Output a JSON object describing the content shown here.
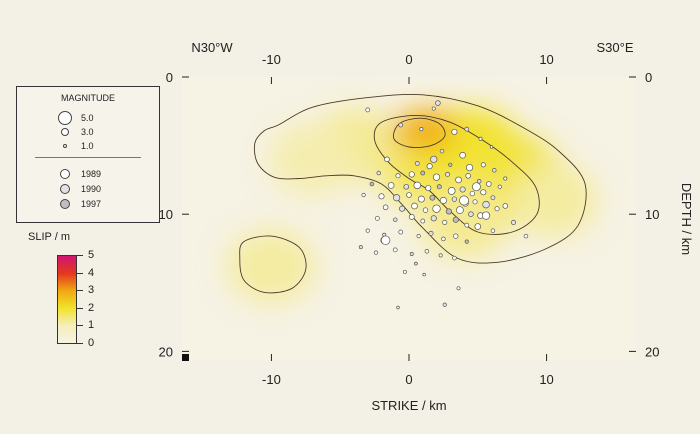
{
  "chart_data": {
    "type": "heatmap",
    "title": "",
    "xlabel": "STRIKE / km",
    "ylabel": "DEPTH / km",
    "corner_left": "N30°W",
    "corner_right": "S30°E",
    "xlim": [
      -16.5,
      16.5
    ],
    "ylim": [
      0,
      20.7
    ],
    "y_inverted": true,
    "x_ticks": [
      -10,
      0,
      10
    ],
    "x_tick_labels": [
      "-10",
      "0",
      "10"
    ],
    "y_ticks": [
      0,
      10,
      20
    ],
    "y_tick_labels": [
      "0",
      "10",
      "20"
    ],
    "colorbar": {
      "title": "SLIP / m",
      "min": 0,
      "max": 5,
      "tick_labels": [
        "5",
        "4",
        "3",
        "2",
        "1",
        "0"
      ],
      "colors": [
        "#f7f3df",
        "#f5eebd",
        "#f2e22c",
        "#f0a812",
        "#e5371e",
        "#cf1570"
      ]
    },
    "slip_patches": [
      {
        "x": 1.5,
        "y": 6.2,
        "slip": 1.7
      },
      {
        "x": 4.5,
        "y": 5.5,
        "slip": 2.0
      },
      {
        "x": 7.5,
        "y": 7.5,
        "slip": 1.9
      },
      {
        "x": -4.0,
        "y": 5.0,
        "slip": 1.3
      },
      {
        "x": -7.0,
        "y": 6.0,
        "slip": 1.1
      },
      {
        "x": 10.5,
        "y": 9.0,
        "slip": 1.2
      },
      {
        "x": 0.5,
        "y": 4.0,
        "slip": 2.6
      },
      {
        "x": 1.5,
        "y": 3.8,
        "slip": 2.9
      },
      {
        "x": -10.0,
        "y": 13.8,
        "slip": 1.2
      },
      {
        "x": 4.0,
        "y": 10.5,
        "slip": 1.3
      }
    ],
    "contours": [
      {
        "level": 1,
        "points": [
          [
            -9.5,
            3.5
          ],
          [
            -7,
            2.2
          ],
          [
            -3,
            1.5
          ],
          [
            1,
            1.3
          ],
          [
            5,
            2.1
          ],
          [
            8.5,
            3.8
          ],
          [
            11,
            5.5
          ],
          [
            12.8,
            7.8
          ],
          [
            12.3,
            10.8
          ],
          [
            10,
            12.5
          ],
          [
            6.5,
            13.5
          ],
          [
            3.5,
            13.2
          ],
          [
            1,
            11
          ],
          [
            -0.5,
            9.3
          ],
          [
            -2,
            7.8
          ],
          [
            -4,
            7.2
          ],
          [
            -6,
            7.2
          ],
          [
            -8,
            7.4
          ],
          [
            -9.8,
            7.3
          ],
          [
            -11,
            6.3
          ],
          [
            -11.2,
            4.8
          ],
          [
            -10.5,
            3.9
          ]
        ]
      },
      {
        "level": 1,
        "points": [
          [
            -12,
            12
          ],
          [
            -10,
            11.6
          ],
          [
            -8,
            12.4
          ],
          [
            -7.5,
            14
          ],
          [
            -8.5,
            15.4
          ],
          [
            -10.5,
            15.7
          ],
          [
            -12,
            14.8
          ],
          [
            -12.3,
            13.2
          ]
        ]
      },
      {
        "level": 2,
        "points": [
          [
            -2,
            3.3
          ],
          [
            0.5,
            2.8
          ],
          [
            3,
            3.3
          ],
          [
            5.5,
            4.7
          ],
          [
            7.5,
            6.2
          ],
          [
            9.2,
            8
          ],
          [
            9.3,
            10
          ],
          [
            7.5,
            11.3
          ],
          [
            5,
            11.3
          ],
          [
            3,
            9.8
          ],
          [
            1.5,
            8.3
          ],
          [
            0,
            7.4
          ],
          [
            -1.5,
            6.2
          ],
          [
            -2.5,
            4.6
          ]
        ]
      },
      {
        "level": 3,
        "points": [
          [
            -0.7,
            3.4
          ],
          [
            0.8,
            3.0
          ],
          [
            2.2,
            3.4
          ],
          [
            2.6,
            4.3
          ],
          [
            1.6,
            5.0
          ],
          [
            0,
            5.1
          ],
          [
            -1.1,
            4.5
          ]
        ]
      }
    ],
    "aftershocks": [
      {
        "x": 2.1,
        "y": 1.9,
        "mag": 1.8,
        "year": 1990
      },
      {
        "x": -3.0,
        "y": 2.4,
        "mag": 1.5,
        "year": 1989
      },
      {
        "x": 1.8,
        "y": 2.3,
        "mag": 1.2,
        "year": 1989
      },
      {
        "x": -0.6,
        "y": 3.5,
        "mag": 1.5,
        "year": 1990
      },
      {
        "x": 0.9,
        "y": 3.8,
        "mag": 1.2,
        "year": 1989
      },
      {
        "x": 3.3,
        "y": 4.0,
        "mag": 2.0,
        "year": 1989
      },
      {
        "x": 4.2,
        "y": 3.8,
        "mag": 1.5,
        "year": 1990
      },
      {
        "x": 5.2,
        "y": 4.5,
        "mag": 1.2,
        "year": 1989
      },
      {
        "x": 6.0,
        "y": 5.1,
        "mag": 1.0,
        "year": 1989
      },
      {
        "x": 2.4,
        "y": 5.4,
        "mag": 1.4,
        "year": 1990
      },
      {
        "x": 3.9,
        "y": 5.7,
        "mag": 2.2,
        "year": 1989
      },
      {
        "x": -1.6,
        "y": 6.0,
        "mag": 1.8,
        "year": 1989
      },
      {
        "x": 0.6,
        "y": 6.3,
        "mag": 1.5,
        "year": 1990
      },
      {
        "x": 1.5,
        "y": 6.5,
        "mag": 2.0,
        "year": 1989
      },
      {
        "x": 3.0,
        "y": 6.4,
        "mag": 1.3,
        "year": 1997
      },
      {
        "x": 4.4,
        "y": 6.6,
        "mag": 2.4,
        "year": 1989
      },
      {
        "x": 5.4,
        "y": 6.4,
        "mag": 1.6,
        "year": 1989
      },
      {
        "x": 6.2,
        "y": 6.8,
        "mag": 1.4,
        "year": 1990
      },
      {
        "x": 7.0,
        "y": 7.4,
        "mag": 1.2,
        "year": 1989
      },
      {
        "x": -2.2,
        "y": 7.0,
        "mag": 1.4,
        "year": 1990
      },
      {
        "x": -0.8,
        "y": 7.2,
        "mag": 1.6,
        "year": 1989
      },
      {
        "x": 0.2,
        "y": 7.1,
        "mag": 2.0,
        "year": 1989
      },
      {
        "x": 1.0,
        "y": 7.0,
        "mag": 1.5,
        "year": 1997
      },
      {
        "x": 2.0,
        "y": 7.3,
        "mag": 2.4,
        "year": 1989
      },
      {
        "x": 2.8,
        "y": 7.1,
        "mag": 1.6,
        "year": 1990
      },
      {
        "x": 3.6,
        "y": 7.5,
        "mag": 2.2,
        "year": 1989
      },
      {
        "x": 4.3,
        "y": 7.2,
        "mag": 1.8,
        "year": 1989
      },
      {
        "x": 5.1,
        "y": 7.6,
        "mag": 1.4,
        "year": 1990
      },
      {
        "x": 5.8,
        "y": 7.8,
        "mag": 1.8,
        "year": 1989
      },
      {
        "x": 6.6,
        "y": 8.0,
        "mag": 1.3,
        "year": 1989
      },
      {
        "x": -2.7,
        "y": 7.8,
        "mag": 1.4,
        "year": 1997
      },
      {
        "x": -1.3,
        "y": 7.9,
        "mag": 2.2,
        "year": 1989
      },
      {
        "x": -0.2,
        "y": 8.0,
        "mag": 1.8,
        "year": 1990
      },
      {
        "x": 0.6,
        "y": 7.9,
        "mag": 2.5,
        "year": 1989
      },
      {
        "x": 1.4,
        "y": 8.1,
        "mag": 2.0,
        "year": 1989
      },
      {
        "x": 2.2,
        "y": 8.0,
        "mag": 1.6,
        "year": 1997
      },
      {
        "x": 3.1,
        "y": 8.3,
        "mag": 2.6,
        "year": 1989
      },
      {
        "x": 3.9,
        "y": 8.2,
        "mag": 2.0,
        "year": 1990
      },
      {
        "x": 4.6,
        "y": 8.5,
        "mag": 1.7,
        "year": 1989
      },
      {
        "x": 5.4,
        "y": 8.4,
        "mag": 2.0,
        "year": 1989
      },
      {
        "x": 6.1,
        "y": 8.8,
        "mag": 1.5,
        "year": 1990
      },
      {
        "x": -3.3,
        "y": 8.6,
        "mag": 1.3,
        "year": 1989
      },
      {
        "x": -2.0,
        "y": 8.7,
        "mag": 2.0,
        "year": 1989
      },
      {
        "x": -0.9,
        "y": 8.8,
        "mag": 2.4,
        "year": 1990
      },
      {
        "x": 0.0,
        "y": 8.6,
        "mag": 1.8,
        "year": 1989
      },
      {
        "x": 0.9,
        "y": 8.9,
        "mag": 2.3,
        "year": 1989
      },
      {
        "x": 1.7,
        "y": 8.8,
        "mag": 1.9,
        "year": 1997
      },
      {
        "x": 2.5,
        "y": 9.0,
        "mag": 2.4,
        "year": 1989
      },
      {
        "x": 3.3,
        "y": 8.9,
        "mag": 1.7,
        "year": 1990
      },
      {
        "x": 4.1,
        "y": 9.2,
        "mag": 2.2,
        "year": 1989
      },
      {
        "x": 4.8,
        "y": 9.1,
        "mag": 1.6,
        "year": 1989
      },
      {
        "x": 5.6,
        "y": 9.3,
        "mag": 2.5,
        "year": 1990
      },
      {
        "x": 6.4,
        "y": 9.6,
        "mag": 1.6,
        "year": 1989
      },
      {
        "x": -1.7,
        "y": 9.5,
        "mag": 1.8,
        "year": 1989
      },
      {
        "x": -0.5,
        "y": 9.6,
        "mag": 2.0,
        "year": 1990
      },
      {
        "x": 0.4,
        "y": 9.4,
        "mag": 2.2,
        "year": 1989
      },
      {
        "x": 1.2,
        "y": 9.7,
        "mag": 1.7,
        "year": 1989
      },
      {
        "x": 2.0,
        "y": 9.6,
        "mag": 2.8,
        "year": 1989
      },
      {
        "x": 2.9,
        "y": 9.8,
        "mag": 2.0,
        "year": 1997
      },
      {
        "x": 3.7,
        "y": 9.7,
        "mag": 2.6,
        "year": 1989
      },
      {
        "x": 4.5,
        "y": 10.0,
        "mag": 1.8,
        "year": 1990
      },
      {
        "x": 5.2,
        "y": 10.1,
        "mag": 2.2,
        "year": 1989
      },
      {
        "x": -2.3,
        "y": 10.3,
        "mag": 1.5,
        "year": 1989
      },
      {
        "x": -1.0,
        "y": 10.4,
        "mag": 1.4,
        "year": 1990
      },
      {
        "x": 0.2,
        "y": 10.2,
        "mag": 1.9,
        "year": 1989
      },
      {
        "x": 1.0,
        "y": 10.5,
        "mag": 1.5,
        "year": 1989
      },
      {
        "x": 1.8,
        "y": 10.3,
        "mag": 2.0,
        "year": 1990
      },
      {
        "x": 2.6,
        "y": 10.6,
        "mag": 1.6,
        "year": 1989
      },
      {
        "x": 3.4,
        "y": 10.4,
        "mag": 2.0,
        "year": 1997
      },
      {
        "x": 4.2,
        "y": 10.8,
        "mag": 1.5,
        "year": 1989
      },
      {
        "x": 5.0,
        "y": 10.9,
        "mag": 2.2,
        "year": 1989
      },
      {
        "x": -3.0,
        "y": 11.2,
        "mag": 1.3,
        "year": 1989
      },
      {
        "x": -1.8,
        "y": 11.5,
        "mag": 1.2,
        "year": 1990
      },
      {
        "x": -0.6,
        "y": 11.3,
        "mag": 1.5,
        "year": 1989
      },
      {
        "x": 0.7,
        "y": 11.6,
        "mag": 1.3,
        "year": 1989
      },
      {
        "x": 1.6,
        "y": 11.4,
        "mag": 1.6,
        "year": 1990
      },
      {
        "x": 2.5,
        "y": 11.8,
        "mag": 1.4,
        "year": 1989
      },
      {
        "x": 3.4,
        "y": 11.6,
        "mag": 1.7,
        "year": 1989
      },
      {
        "x": 4.2,
        "y": 12.0,
        "mag": 1.3,
        "year": 1997
      },
      {
        "x": -1.8,
        "y": 11.9,
        "mag": 2.6,
        "year": 1989
      },
      {
        "x": -3.5,
        "y": 12.4,
        "mag": 1.2,
        "year": 1990
      },
      {
        "x": -2.4,
        "y": 12.8,
        "mag": 1.3,
        "year": 1989
      },
      {
        "x": -1.0,
        "y": 12.6,
        "mag": 1.5,
        "year": 1989
      },
      {
        "x": 0.2,
        "y": 12.9,
        "mag": 1.2,
        "year": 1990
      },
      {
        "x": 1.3,
        "y": 12.7,
        "mag": 1.4,
        "year": 1989
      },
      {
        "x": 2.3,
        "y": 13.0,
        "mag": 1.2,
        "year": 1989
      },
      {
        "x": 3.3,
        "y": 13.2,
        "mag": 1.4,
        "year": 1989
      },
      {
        "x": 0.5,
        "y": 13.6,
        "mag": 1.1,
        "year": 1990
      },
      {
        "x": -0.3,
        "y": 14.2,
        "mag": 1.2,
        "year": 1989
      },
      {
        "x": 1.1,
        "y": 14.4,
        "mag": 1.0,
        "year": 1989
      },
      {
        "x": 3.6,
        "y": 15.4,
        "mag": 1.2,
        "year": 1989
      },
      {
        "x": 2.6,
        "y": 16.6,
        "mag": 1.3,
        "year": 1990
      },
      {
        "x": -0.8,
        "y": 16.8,
        "mag": 1.0,
        "year": 1989
      },
      {
        "x": 7.0,
        "y": 9.4,
        "mag": 1.8,
        "year": 1989
      },
      {
        "x": 7.6,
        "y": 10.6,
        "mag": 1.6,
        "year": 1990
      },
      {
        "x": 8.5,
        "y": 11.6,
        "mag": 1.4,
        "year": 1989
      },
      {
        "x": 6.1,
        "y": 11.2,
        "mag": 1.4,
        "year": 1989
      },
      {
        "x": 4.0,
        "y": 9.0,
        "mag": 3.4,
        "year": 1989
      },
      {
        "x": 4.9,
        "y": 8.0,
        "mag": 3.0,
        "year": 1989
      },
      {
        "x": -1.7,
        "y": 11.9,
        "mag": 3.2,
        "year": 1989
      },
      {
        "x": 1.8,
        "y": 6.0,
        "mag": 2.4,
        "year": 1990
      },
      {
        "x": 5.6,
        "y": 10.1,
        "mag": 2.8,
        "year": 1989
      }
    ],
    "legend": {
      "magnitude_title": "MAGNITUDE",
      "magnitude_entries": [
        {
          "label": "5.0",
          "mag": 5.0
        },
        {
          "label": "3.0",
          "mag": 3.0
        },
        {
          "label": "1.0",
          "mag": 1.0
        }
      ],
      "year_entries": [
        {
          "label": "1989",
          "color": "#ffffff"
        },
        {
          "label": "1990",
          "color": "#e2e2e6"
        },
        {
          "label": "1997",
          "color": "#bdbdc2"
        }
      ]
    },
    "year_colors": {
      "1989": "#ffffff",
      "1990": "#e2e2e6",
      "1997": "#bdbdc2"
    }
  }
}
